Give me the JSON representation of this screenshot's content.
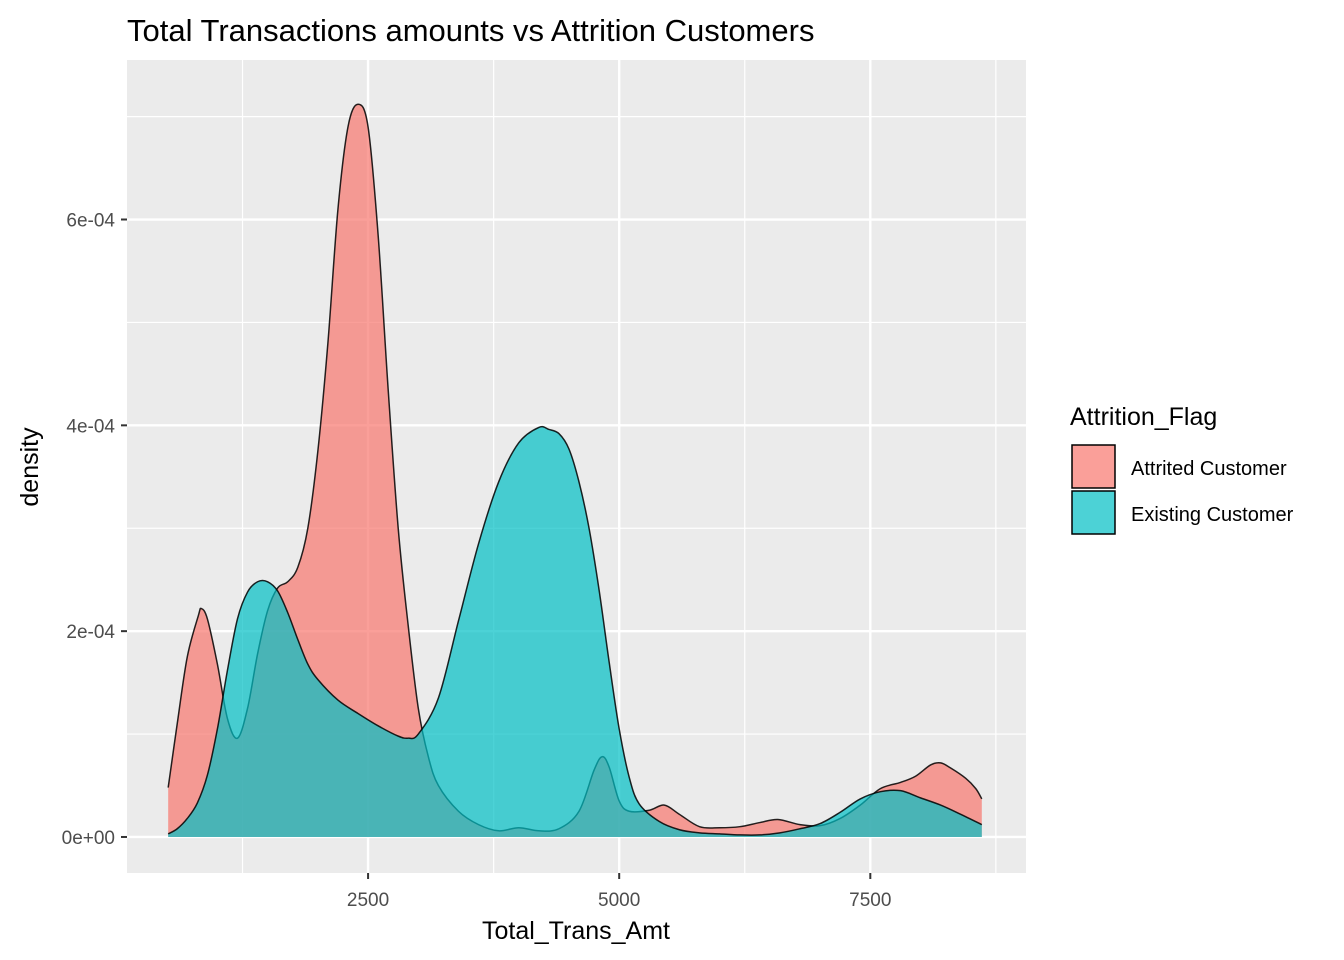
{
  "chart_data": {
    "type": "area",
    "title": "Total Transactions amounts vs Attrition Customers",
    "xlabel": "Total_Trans_Amt",
    "ylabel": "density",
    "xlim": [
      100,
      9050
    ],
    "ylim": [
      -3.5e-05,
      0.000755
    ],
    "x_ticks": [
      2500,
      5000,
      7500
    ],
    "x_tick_labels": [
      "2500",
      "5000",
      "7500"
    ],
    "y_ticks": [
      0,
      0.0002,
      0.0004,
      0.0006
    ],
    "y_tick_labels": [
      "0e+00",
      "2e-04",
      "4e-04",
      "6e-04"
    ],
    "grid": true,
    "legend": {
      "title": "Attrition_Flag",
      "position": "right"
    },
    "series": [
      {
        "name": "Attrited Customer",
        "color": "#F8766D",
        "points": [
          [
            510,
            4.8e-05
          ],
          [
            600,
            0.00011
          ],
          [
            700,
            0.000175
          ],
          [
            810,
            0.000215
          ],
          [
            840,
            0.000222
          ],
          [
            900,
            0.000212
          ],
          [
            1000,
            0.000168
          ],
          [
            1100,
            0.000115
          ],
          [
            1200,
            9.6e-05
          ],
          [
            1300,
            0.000125
          ],
          [
            1400,
            0.000178
          ],
          [
            1500,
            0.00022
          ],
          [
            1600,
            0.000242
          ],
          [
            1700,
            0.000248
          ],
          [
            1800,
            0.000262
          ],
          [
            1900,
            0.0003
          ],
          [
            2000,
            0.000375
          ],
          [
            2100,
            0.00048
          ],
          [
            2200,
            0.00061
          ],
          [
            2300,
            0.00069
          ],
          [
            2400,
            0.000712
          ],
          [
            2500,
            0.00069
          ],
          [
            2600,
            0.000585
          ],
          [
            2700,
            0.000435
          ],
          [
            2800,
            0.0003
          ],
          [
            2900,
            0.000205
          ],
          [
            3000,
            0.000125
          ],
          [
            3100,
            7.8e-05
          ],
          [
            3200,
            5e-05
          ],
          [
            3400,
            2.5e-05
          ],
          [
            3600,
            1.2e-05
          ],
          [
            3800,
            6e-06
          ],
          [
            4000,
            9e-06
          ],
          [
            4200,
            6e-06
          ],
          [
            4400,
            8e-06
          ],
          [
            4600,
            2.5e-05
          ],
          [
            4750,
            6.5e-05
          ],
          [
            4830,
            7.8e-05
          ],
          [
            4900,
            6.8e-05
          ],
          [
            5000,
            3.5e-05
          ],
          [
            5100,
            2.5e-05
          ],
          [
            5300,
            2.6e-05
          ],
          [
            5450,
            3.1e-05
          ],
          [
            5600,
            2.2e-05
          ],
          [
            5800,
            1e-05
          ],
          [
            6000,
            9e-06
          ],
          [
            6200,
            1e-05
          ],
          [
            6400,
            1.4e-05
          ],
          [
            6580,
            1.7e-05
          ],
          [
            6800,
            1.2e-05
          ],
          [
            7000,
            1.1e-05
          ],
          [
            7200,
            1.8e-05
          ],
          [
            7400,
            3.1e-05
          ],
          [
            7600,
            4.7e-05
          ],
          [
            7800,
            5.3e-05
          ],
          [
            7950,
            5.9e-05
          ],
          [
            8100,
            7e-05
          ],
          [
            8200,
            7.2e-05
          ],
          [
            8300,
            6.7e-05
          ],
          [
            8450,
            5.7e-05
          ],
          [
            8550,
            4.7e-05
          ],
          [
            8610,
            3.7e-05
          ]
        ]
      },
      {
        "name": "Existing Customer",
        "color": "#00BFC4",
        "points": [
          [
            510,
            3e-06
          ],
          [
            600,
            8e-06
          ],
          [
            700,
            1.8e-05
          ],
          [
            800,
            3.3e-05
          ],
          [
            900,
            6e-05
          ],
          [
            1000,
            0.000105
          ],
          [
            1100,
            0.000162
          ],
          [
            1200,
            0.000212
          ],
          [
            1300,
            0.000238
          ],
          [
            1400,
            0.000248
          ],
          [
            1500,
            0.000248
          ],
          [
            1600,
            0.000239
          ],
          [
            1700,
            0.000218
          ],
          [
            1800,
            0.000192
          ],
          [
            1900,
            0.000168
          ],
          [
            2000,
            0.000153
          ],
          [
            2200,
            0.000133
          ],
          [
            2400,
            0.00012
          ],
          [
            2600,
            0.000108
          ],
          [
            2800,
            9.8e-05
          ],
          [
            2900,
            9.6e-05
          ],
          [
            3000,
            0.0001
          ],
          [
            3200,
            0.000135
          ],
          [
            3400,
            0.00021
          ],
          [
            3600,
            0.000285
          ],
          [
            3800,
            0.000345
          ],
          [
            4000,
            0.000383
          ],
          [
            4200,
            0.000398
          ],
          [
            4300,
            0.000396
          ],
          [
            4400,
            0.000392
          ],
          [
            4500,
            0.000377
          ],
          [
            4600,
            0.000345
          ],
          [
            4700,
            0.0003
          ],
          [
            4800,
            0.00024
          ],
          [
            4900,
            0.00017
          ],
          [
            5000,
            0.000105
          ],
          [
            5100,
            5.8e-05
          ],
          [
            5200,
            3.2e-05
          ],
          [
            5400,
            1.5e-05
          ],
          [
            5600,
            7e-06
          ],
          [
            5800,
            4e-06
          ],
          [
            6000,
            3e-06
          ],
          [
            6200,
            2e-06
          ],
          [
            6400,
            2e-06
          ],
          [
            6600,
            4e-06
          ],
          [
            6800,
            8e-06
          ],
          [
            7000,
            1.3e-05
          ],
          [
            7200,
            2.4e-05
          ],
          [
            7400,
            3.7e-05
          ],
          [
            7600,
            4.4e-05
          ],
          [
            7800,
            4.5e-05
          ],
          [
            8000,
            3.8e-05
          ],
          [
            8200,
            3.1e-05
          ],
          [
            8400,
            2.2e-05
          ],
          [
            8610,
            1.2e-05
          ]
        ]
      }
    ]
  }
}
